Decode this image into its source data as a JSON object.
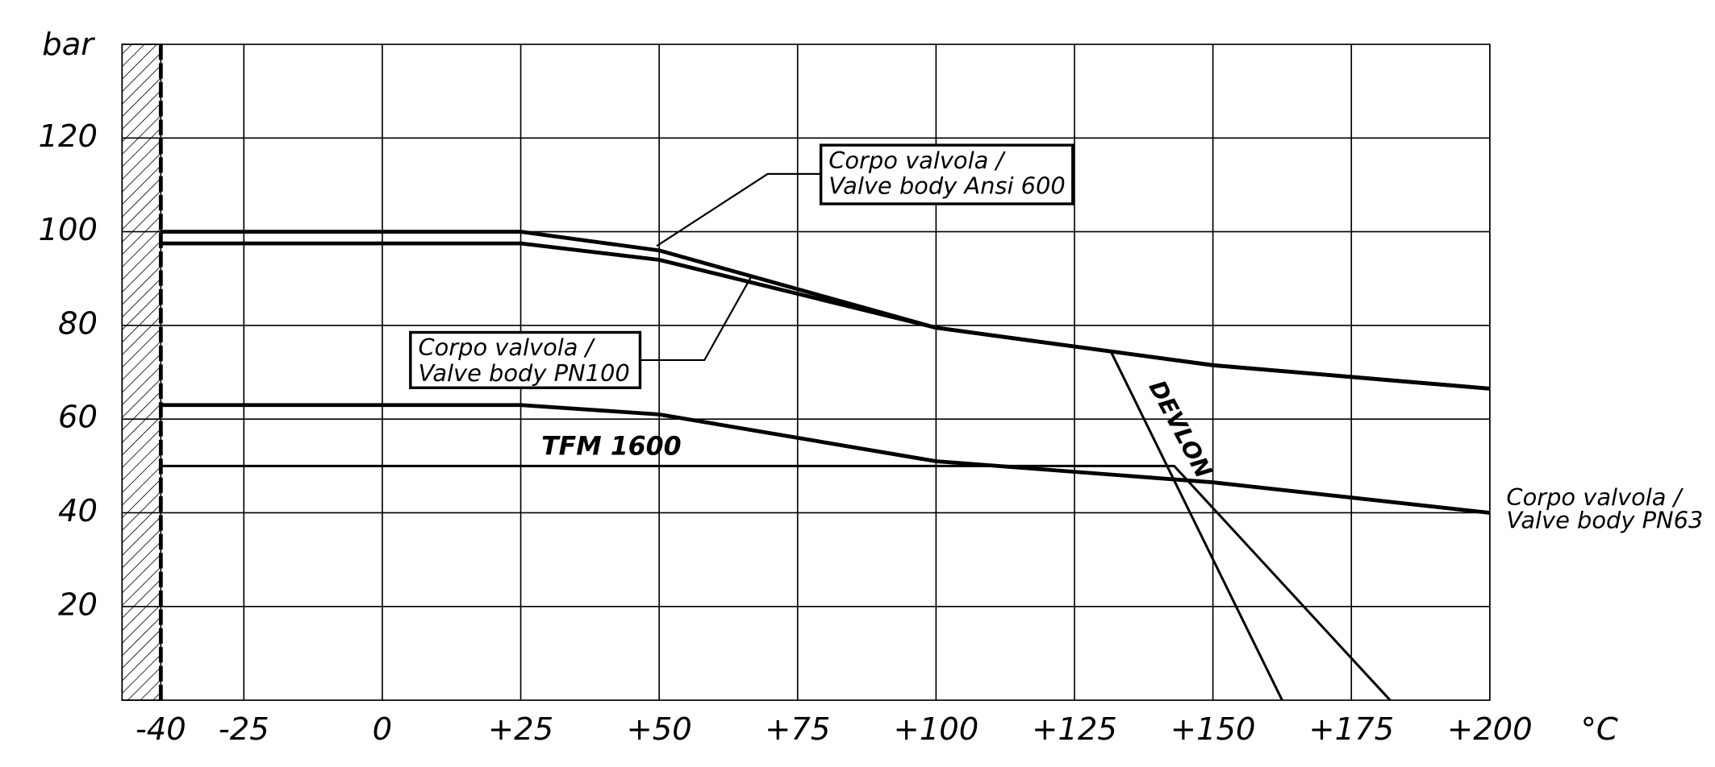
{
  "chart_data": {
    "type": "line",
    "y_label": "bar",
    "x_label": "°C",
    "xlim": [
      -47,
      200
    ],
    "ylim": [
      0,
      140
    ],
    "xticks": [
      -40,
      -25,
      0,
      {
        "value": 25,
        "label": "+25"
      },
      {
        "value": 50,
        "label": "+50"
      },
      {
        "value": 75,
        "label": "+75"
      },
      {
        "value": 100,
        "label": "+100"
      },
      {
        "value": 125,
        "label": "+125"
      },
      {
        "value": 150,
        "label": "+150"
      },
      {
        "value": 175,
        "label": "+175"
      },
      {
        "value": 200,
        "label": "+200"
      }
    ],
    "yticks": [
      20,
      40,
      60,
      80,
      100,
      120
    ],
    "grid": true,
    "color": "#000000",
    "series": [
      {
        "name": [
          "Corpo valvola /",
          "Valve body Ansi 600"
        ],
        "x": [
          -40,
          25,
          50,
          100,
          150,
          200
        ],
        "values": [
          100,
          100,
          96,
          79.5,
          71.5,
          66.5
        ]
      },
      {
        "name": [
          "Corpo valvola /",
          "Valve body PN100"
        ],
        "x": [
          -40,
          25,
          50,
          100,
          150,
          200
        ],
        "values": [
          97.5,
          97.5,
          94,
          79.5,
          71.5,
          66.5
        ]
      },
      {
        "name": [
          "Corpo valvola /",
          "Valve body PN63"
        ],
        "x": [
          -40,
          25,
          50,
          100,
          150,
          200
        ],
        "values": [
          63,
          63,
          61,
          51,
          46.5,
          40
        ]
      },
      {
        "name": "TFM 1600",
        "x": [
          -40,
          143,
          182
        ],
        "values": [
          50,
          50,
          0
        ]
      },
      {
        "name": "DEVLON",
        "x": [
          131.5,
          162.5
        ],
        "values": [
          74.6,
          0
        ]
      }
    ]
  }
}
